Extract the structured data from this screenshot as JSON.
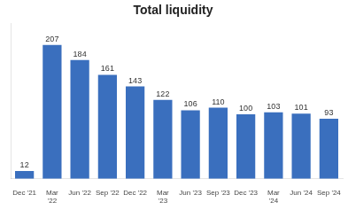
{
  "chart_data": {
    "type": "bar",
    "title": "Total liquidity",
    "categories": [
      "Dec '21",
      "Mar\n'22",
      "Jun '22",
      "Sep '22",
      "Dec '22",
      "Mar\n'23",
      "Jun '23",
      "Sep '23",
      "Dec '23",
      "Mar\n'24",
      "Jun '24",
      "Sep '24"
    ],
    "values": [
      12,
      207,
      184,
      161,
      143,
      122,
      106,
      110,
      100,
      103,
      101,
      93
    ],
    "color": "#3a6fbe",
    "ylim": [
      0,
      240
    ],
    "grid": false,
    "data_labels": true,
    "tick_labels": "x"
  }
}
